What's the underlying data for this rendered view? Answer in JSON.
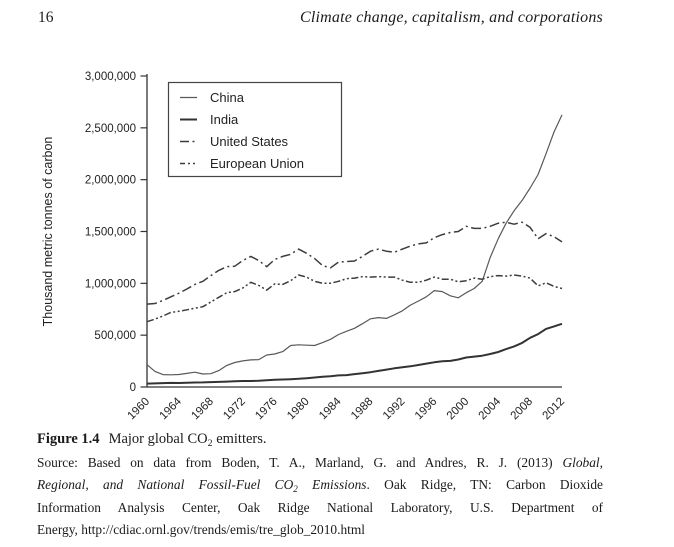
{
  "header": {
    "page_number": "16",
    "running_title": "Climate change, capitalism, and corporations"
  },
  "figure": {
    "caption_segments": [
      {
        "t": "Figure 1.4",
        "c": "b"
      },
      {
        "t": "Major global CO",
        "c": "gap"
      },
      {
        "t": "2",
        "c": "sub"
      },
      {
        "t": " emitters.",
        "c": ""
      }
    ],
    "source_lines": [
      [
        {
          "t": "Source: Based on data from Boden, T. A., Marland, G. and Andres, R. J. (2013) ",
          "c": ""
        },
        {
          "t": "Global,",
          "c": "i"
        }
      ],
      [
        {
          "t": "Regional, and National Fossil-Fuel CO",
          "c": "i"
        },
        {
          "t": "2",
          "c": "i sub"
        },
        {
          "t": " Emissions",
          "c": "i"
        },
        {
          "t": ". Oak Ridge, TN: Carbon Dioxide",
          "c": ""
        }
      ],
      [
        {
          "t": "Information Analysis Center, Oak Ridge National Laboratory, U.S. Department of",
          "c": ""
        }
      ],
      [
        {
          "t": "Energy, http://cdiac.ornl.gov/trends/emis/tre_glob_2010.html",
          "c": ""
        }
      ]
    ]
  },
  "chart_data": {
    "type": "line",
    "title": "Figure 1.4 Major global CO2 emitters",
    "xlabel": "",
    "ylabel": "Thousand metric tonnes of carbon",
    "ylim": [
      0,
      3000000
    ],
    "grid": false,
    "legend_position": "upper-left-inside",
    "y_ticks": {
      "values": [
        0,
        500000,
        1000000,
        1500000,
        2000000,
        2500000,
        3000000
      ],
      "labels": [
        "0",
        "500,000",
        "1,000,000",
        "1,500,000",
        "2,000,000",
        "2,500,000",
        "3,000,000"
      ]
    },
    "x_tick_labels": [
      "1960",
      "1964",
      "1968",
      "1972",
      "1976",
      "1980",
      "1984",
      "1988",
      "1992",
      "1996",
      "2000",
      "2004",
      "2008",
      "2012"
    ],
    "x": [
      1960,
      1961,
      1962,
      1963,
      1964,
      1965,
      1966,
      1967,
      1968,
      1969,
      1970,
      1971,
      1972,
      1973,
      1974,
      1975,
      1976,
      1977,
      1978,
      1979,
      1980,
      1981,
      1982,
      1983,
      1984,
      1985,
      1986,
      1987,
      1988,
      1989,
      1990,
      1991,
      1992,
      1993,
      1994,
      1995,
      1996,
      1997,
      1998,
      1999,
      2000,
      2001,
      2002,
      2003,
      2004,
      2005,
      2006,
      2007,
      2008,
      2009,
      2010,
      2011,
      2012
    ],
    "unit_multiplier": 1000,
    "series": [
      {
        "name": "China",
        "style": "solid-thin",
        "color": "#595959",
        "values": [
          215,
          150,
          120,
          118,
          121,
          131,
          143,
          125,
          128,
          158,
          208,
          236,
          252,
          261,
          264,
          309,
          318,
          341,
          400,
          407,
          403,
          400,
          428,
          460,
          506,
          537,
          566,
          611,
          658,
          669,
          662,
          696,
          735,
          790,
          829,
          870,
          930,
          920,
          880,
          860,
          910,
          950,
          1020,
          1250,
          1430,
          1580,
          1700,
          1800,
          1920,
          2050,
          2250,
          2460,
          2625
        ]
      },
      {
        "name": "India",
        "style": "solid-thick",
        "color": "#333333",
        "values": [
          33,
          35,
          38,
          40,
          39,
          41,
          43,
          44,
          47,
          49,
          52,
          55,
          58,
          58,
          61,
          66,
          69,
          72,
          75,
          79,
          85,
          92,
          98,
          104,
          112,
          115,
          124,
          133,
          143,
          155,
          168,
          180,
          191,
          200,
          212,
          226,
          238,
          248,
          252,
          265,
          285,
          293,
          302,
          318,
          338,
          366,
          392,
          425,
          475,
          510,
          560,
          585,
          610
        ]
      },
      {
        "name": "United States",
        "style": "dash-dot",
        "color": "#3c3c3c",
        "values": [
          800,
          805,
          835,
          870,
          905,
          945,
          990,
          1020,
          1075,
          1125,
          1160,
          1165,
          1220,
          1260,
          1220,
          1160,
          1230,
          1260,
          1280,
          1330,
          1290,
          1240,
          1170,
          1150,
          1205,
          1210,
          1215,
          1260,
          1310,
          1330,
          1310,
          1300,
          1330,
          1360,
          1380,
          1390,
          1440,
          1470,
          1490,
          1500,
          1550,
          1530,
          1530,
          1550,
          1580,
          1590,
          1570,
          1590,
          1540,
          1430,
          1480,
          1450,
          1400
        ]
      },
      {
        "name": "European Union",
        "style": "dash-dot-dot",
        "color": "#3c3c3c",
        "values": [
          630,
          655,
          685,
          720,
          730,
          745,
          760,
          775,
          820,
          865,
          910,
          920,
          955,
          1010,
          980,
          935,
          995,
          990,
          1025,
          1080,
          1060,
          1020,
          1000,
          1000,
          1020,
          1045,
          1050,
          1065,
          1060,
          1065,
          1060,
          1060,
          1030,
          1010,
          1010,
          1030,
          1060,
          1040,
          1040,
          1015,
          1025,
          1050,
          1040,
          1065,
          1075,
          1070,
          1080,
          1070,
          1050,
          975,
          1005,
          970,
          950
        ]
      }
    ]
  }
}
